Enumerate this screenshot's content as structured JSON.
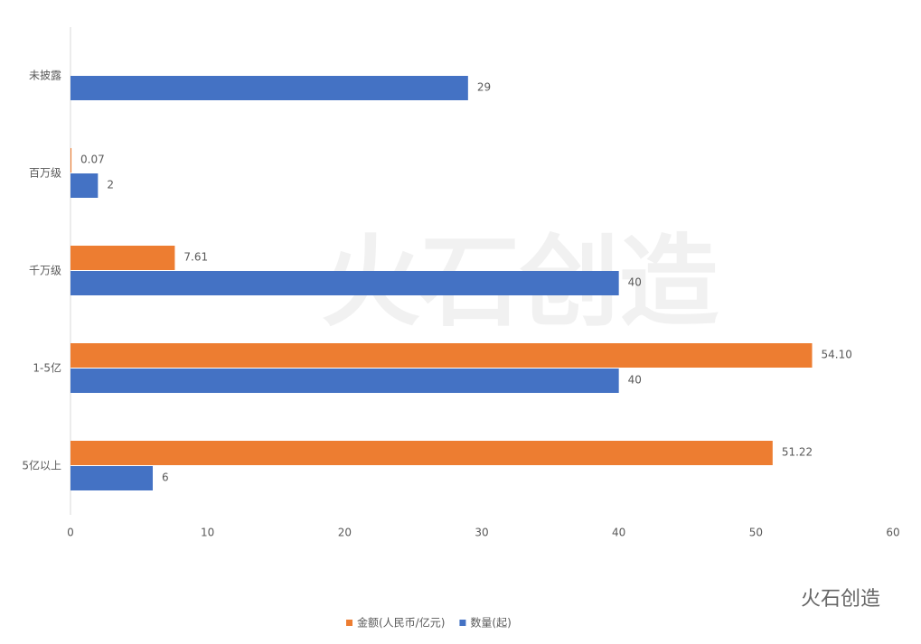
{
  "chart_data": {
    "type": "hbar",
    "categories": [
      "未披露",
      "百万级",
      "千万级",
      "1-5亿",
      "5亿以上"
    ],
    "series": [
      {
        "name": "金额(人民币/亿元)",
        "color": "#ed7d31",
        "values": [
          null,
          0.07,
          7.61,
          54.1,
          51.22
        ],
        "value_labels": [
          null,
          "0.07",
          "7.61",
          "54.10",
          "51.22"
        ]
      },
      {
        "name": "数量(起)",
        "color": "#4472c4",
        "values": [
          29,
          2,
          40,
          40,
          6
        ]
      }
    ],
    "xlim": [
      0,
      60
    ],
    "xticks": [
      0,
      10,
      20,
      30,
      40,
      50,
      60
    ],
    "legend": "bottom",
    "watermark": "火石创造"
  }
}
